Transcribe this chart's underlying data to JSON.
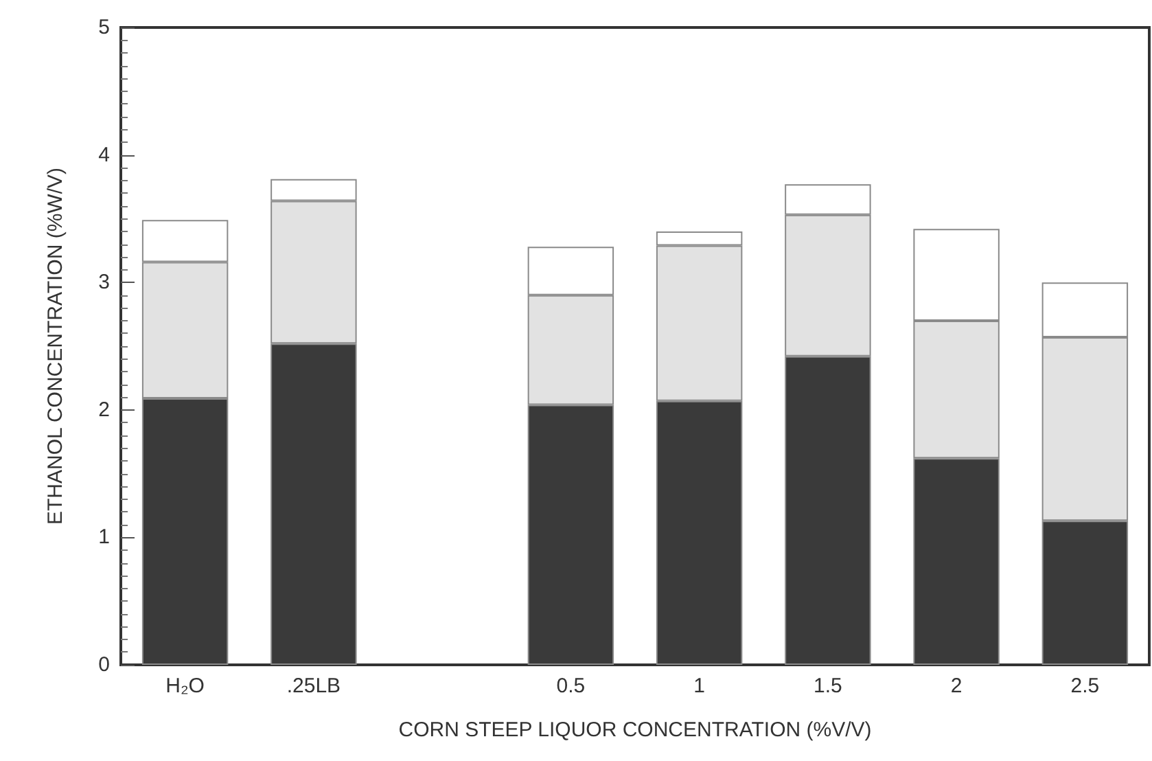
{
  "chart_data": {
    "type": "bar",
    "stacked": true,
    "xlabel": "CORN STEEP LIQUOR CONCENTRATION (%V/V)",
    "ylabel": "ETHANOL CONCENTRATION (%W/V)",
    "categories": [
      "H₂O",
      ".25LB",
      null,
      "0.5",
      "1",
      "1.5",
      "2",
      "2.5"
    ],
    "series": [
      {
        "color": "#3a3a3a",
        "values": [
          2.09,
          2.52,
          null,
          2.04,
          2.07,
          2.42,
          1.62,
          1.13
        ]
      },
      {
        "color": "#e2e2e2",
        "values": [
          1.07,
          1.12,
          null,
          0.86,
          1.22,
          1.11,
          1.08,
          1.44
        ]
      },
      {
        "color": "#ffffff",
        "values": [
          0.33,
          0.17,
          null,
          0.38,
          0.11,
          0.24,
          0.72,
          0.43
        ]
      }
    ],
    "ylim": [
      0,
      5
    ],
    "yticks": [
      0,
      1,
      2,
      3,
      4,
      5
    ],
    "grid": false
  }
}
